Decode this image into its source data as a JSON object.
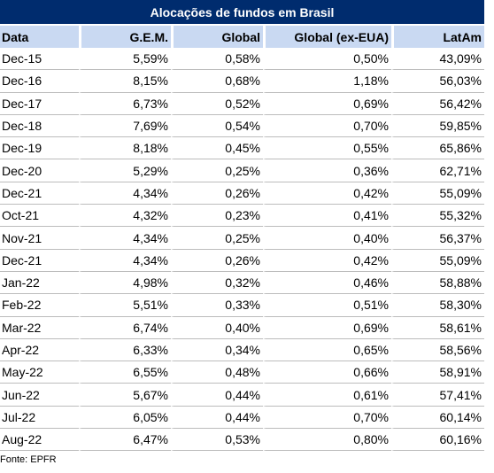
{
  "title": "Alocações de fundos em Brasil",
  "columns": [
    "Data",
    "G.E.M.",
    "Global",
    "Global (ex-EUA)",
    "LatAm"
  ],
  "rows": [
    [
      "Dec-15",
      "5,59%",
      "0,58%",
      "0,50%",
      "43,09%"
    ],
    [
      "Dec-16",
      "8,15%",
      "0,68%",
      "1,18%",
      "56,03%"
    ],
    [
      "Dec-17",
      "6,73%",
      "0,52%",
      "0,69%",
      "56,42%"
    ],
    [
      "Dec-18",
      "7,69%",
      "0,54%",
      "0,70%",
      "59,85%"
    ],
    [
      "Dec-19",
      "8,18%",
      "0,45%",
      "0,55%",
      "65,86%"
    ],
    [
      "Dec-20",
      "5,29%",
      "0,25%",
      "0,36%",
      "62,71%"
    ],
    [
      "Dec-21",
      "4,34%",
      "0,26%",
      "0,42%",
      "55,09%"
    ],
    [
      "Oct-21",
      "4,32%",
      "0,23%",
      "0,41%",
      "55,32%"
    ],
    [
      "Nov-21",
      "4,34%",
      "0,25%",
      "0,40%",
      "56,37%"
    ],
    [
      "Dec-21",
      "4,34%",
      "0,26%",
      "0,42%",
      "55,09%"
    ],
    [
      "Jan-22",
      "4,98%",
      "0,32%",
      "0,46%",
      "58,88%"
    ],
    [
      "Feb-22",
      "5,51%",
      "0,33%",
      "0,51%",
      "58,30%"
    ],
    [
      "Mar-22",
      "6,74%",
      "0,40%",
      "0,69%",
      "58,61%"
    ],
    [
      "Apr-22",
      "6,33%",
      "0,34%",
      "0,65%",
      "58,56%"
    ],
    [
      "May-22",
      "6,55%",
      "0,48%",
      "0,66%",
      "58,91%"
    ],
    [
      "Jun-22",
      "5,67%",
      "0,44%",
      "0,61%",
      "57,41%"
    ],
    [
      "Jul-22",
      "6,05%",
      "0,44%",
      "0,70%",
      "60,14%"
    ],
    [
      "Aug-22",
      "6,47%",
      "0,53%",
      "0,80%",
      "60,16%"
    ]
  ],
  "source": "Fonte: EPFR",
  "colors": {
    "title_bg": "#002c6e",
    "header_bg": "#c9d9f2",
    "row_rule": "#bcbcbc"
  }
}
